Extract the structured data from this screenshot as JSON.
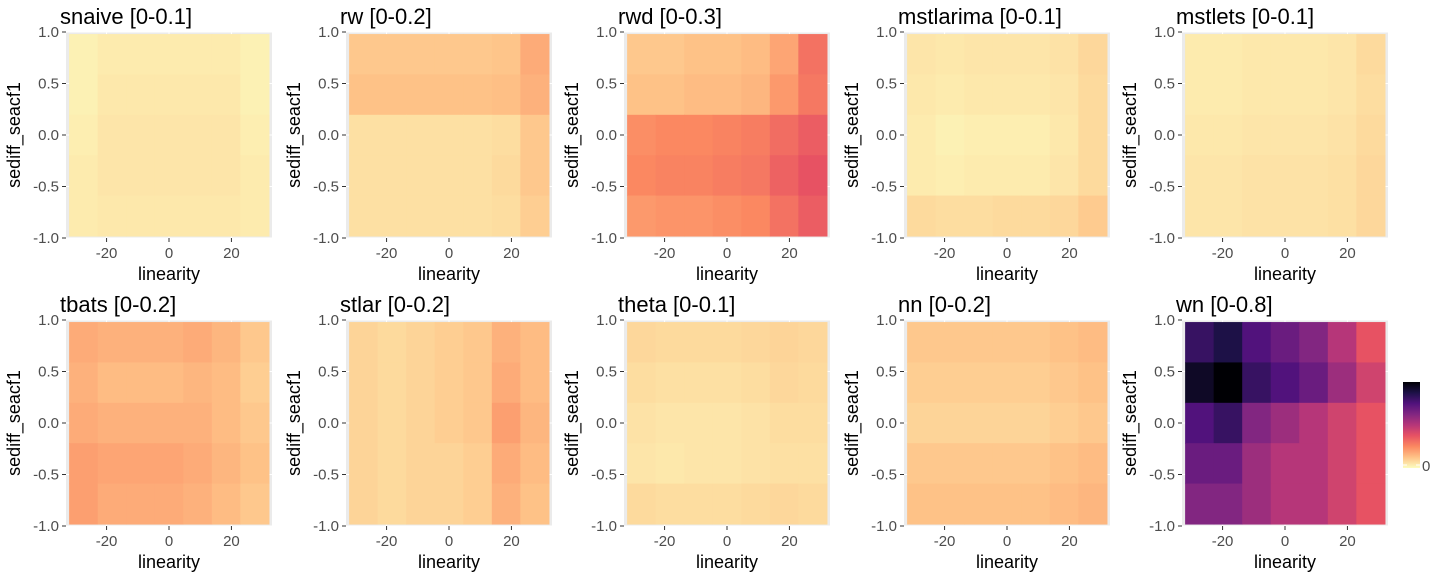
{
  "figure": {
    "colorbar": {
      "min_label": "0"
    },
    "colors": {
      "panel_bg": "#ebebeb",
      "grid": "#ffffff",
      "axis_text": "#4d4d4d",
      "title_text": "#000000",
      "magma_stops": [
        "#fcfdbf",
        "#fec287",
        "#fb8861",
        "#e75263",
        "#b63679",
        "#822681",
        "#51127c",
        "#1d1147",
        "#000004"
      ]
    }
  },
  "chart_data": [
    {
      "type": "heatmap",
      "title": "snaive [0-0.1]",
      "xlabel": "linearity",
      "ylabel": "sediff_seacf1",
      "xlim": [
        -33,
        33
      ],
      "ylim": [
        -1.0,
        1.0
      ],
      "xticks": [
        -20,
        0,
        20
      ],
      "xtick_labels": [
        "-20",
        "0",
        "20"
      ],
      "yticks": [
        -1.0,
        -0.5,
        0.0,
        0.5,
        1.0
      ],
      "ytick_labels": [
        "-1.0",
        "-0.5",
        "0.0",
        "0.5",
        "1.0"
      ],
      "x_centers": [
        -30,
        -20,
        -10,
        0,
        10,
        20,
        30
      ],
      "y_centers": [
        0.8,
        0.4,
        0.0,
        -0.4,
        -0.8
      ],
      "values": [
        [
          0.02,
          0.03,
          0.03,
          0.03,
          0.03,
          0.03,
          0.02
        ],
        [
          0.02,
          0.035,
          0.035,
          0.035,
          0.035,
          0.035,
          0.02
        ],
        [
          0.025,
          0.04,
          0.04,
          0.04,
          0.04,
          0.04,
          0.025
        ],
        [
          0.03,
          0.04,
          0.04,
          0.04,
          0.04,
          0.04,
          0.03
        ],
        [
          0.03,
          0.035,
          0.035,
          0.035,
          0.035,
          0.035,
          0.03
        ]
      ]
    },
    {
      "type": "heatmap",
      "title": "rw [0-0.2]",
      "xlabel": "linearity",
      "ylabel": "sediff_seacf1",
      "xlim": [
        -33,
        33
      ],
      "ylim": [
        -1.0,
        1.0
      ],
      "xticks": [
        -20,
        0,
        20
      ],
      "xtick_labels": [
        "-20",
        "0",
        "20"
      ],
      "yticks": [
        -1.0,
        -0.5,
        0.0,
        0.5,
        1.0
      ],
      "ytick_labels": [
        "-1.0",
        "-0.5",
        "0.0",
        "0.5",
        "1.0"
      ],
      "x_centers": [
        -30,
        -20,
        -10,
        0,
        10,
        20,
        30
      ],
      "y_centers": [
        0.8,
        0.4,
        0.0,
        -0.4,
        -0.8
      ],
      "values": [
        [
          0.09,
          0.09,
          0.09,
          0.09,
          0.09,
          0.095,
          0.14
        ],
        [
          0.1,
          0.1,
          0.1,
          0.1,
          0.1,
          0.105,
          0.13
        ],
        [
          0.05,
          0.05,
          0.05,
          0.05,
          0.05,
          0.055,
          0.09
        ],
        [
          0.05,
          0.05,
          0.05,
          0.05,
          0.05,
          0.06,
          0.09
        ],
        [
          0.05,
          0.05,
          0.05,
          0.05,
          0.05,
          0.055,
          0.08
        ]
      ]
    },
    {
      "type": "heatmap",
      "title": "rwd [0-0.3]",
      "xlabel": "linearity",
      "ylabel": "sediff_seacf1",
      "xlim": [
        -33,
        33
      ],
      "ylim": [
        -1.0,
        1.0
      ],
      "xticks": [
        -20,
        0,
        20
      ],
      "xtick_labels": [
        "-20",
        "0",
        "20"
      ],
      "yticks": [
        -1.0,
        -0.5,
        0.0,
        0.5,
        1.0
      ],
      "ytick_labels": [
        "-1.0",
        "-0.5",
        "0.0",
        "0.5",
        "1.0"
      ],
      "x_centers": [
        -30,
        -20,
        -10,
        0,
        10,
        20,
        30
      ],
      "y_centers": [
        0.8,
        0.4,
        0.0,
        -0.4,
        -0.8
      ],
      "values": [
        [
          0.09,
          0.09,
          0.1,
          0.1,
          0.11,
          0.15,
          0.24
        ],
        [
          0.1,
          0.1,
          0.11,
          0.11,
          0.12,
          0.17,
          0.23
        ],
        [
          0.19,
          0.2,
          0.2,
          0.21,
          0.22,
          0.25,
          0.28
        ],
        [
          0.2,
          0.21,
          0.21,
          0.22,
          0.23,
          0.27,
          0.3
        ],
        [
          0.17,
          0.18,
          0.18,
          0.19,
          0.2,
          0.24,
          0.28
        ]
      ]
    },
    {
      "type": "heatmap",
      "title": "mstlarima [0-0.1]",
      "xlabel": "linearity",
      "ylabel": "sediff_seacf1",
      "xlim": [
        -33,
        33
      ],
      "ylim": [
        -1.0,
        1.0
      ],
      "xticks": [
        -20,
        0,
        20
      ],
      "xtick_labels": [
        "-20",
        "0",
        "20"
      ],
      "yticks": [
        -1.0,
        -0.5,
        0.0,
        0.5,
        1.0
      ],
      "ytick_labels": [
        "-1.0",
        "-0.5",
        "0.0",
        "0.5",
        "1.0"
      ],
      "x_centers": [
        -30,
        -20,
        -10,
        0,
        10,
        20,
        30
      ],
      "y_centers": [
        0.8,
        0.4,
        0.0,
        -0.4,
        -0.8
      ],
      "values": [
        [
          0.04,
          0.035,
          0.04,
          0.04,
          0.04,
          0.045,
          0.065
        ],
        [
          0.035,
          0.03,
          0.035,
          0.035,
          0.035,
          0.04,
          0.06
        ],
        [
          0.03,
          0.02,
          0.025,
          0.025,
          0.025,
          0.035,
          0.06
        ],
        [
          0.03,
          0.025,
          0.03,
          0.03,
          0.03,
          0.04,
          0.06
        ],
        [
          0.06,
          0.055,
          0.055,
          0.06,
          0.06,
          0.065,
          0.085
        ]
      ]
    },
    {
      "type": "heatmap",
      "title": "mstlets [0-0.1]",
      "xlabel": "linearity",
      "ylabel": "sediff_seacf1",
      "xlim": [
        -33,
        33
      ],
      "ylim": [
        -1.0,
        1.0
      ],
      "xticks": [
        -20,
        0,
        20
      ],
      "xtick_labels": [
        "-20",
        "0",
        "20"
      ],
      "yticks": [
        -1.0,
        -0.5,
        0.0,
        0.5,
        1.0
      ],
      "ytick_labels": [
        "-1.0",
        "-0.5",
        "0.0",
        "0.5",
        "1.0"
      ],
      "x_centers": [
        -30,
        -20,
        -10,
        0,
        10,
        20,
        30
      ],
      "y_centers": [
        0.8,
        0.4,
        0.0,
        -0.4,
        -0.8
      ],
      "values": [
        [
          0.03,
          0.03,
          0.035,
          0.035,
          0.035,
          0.04,
          0.06
        ],
        [
          0.03,
          0.03,
          0.035,
          0.035,
          0.035,
          0.04,
          0.055
        ],
        [
          0.035,
          0.035,
          0.04,
          0.04,
          0.04,
          0.045,
          0.06
        ],
        [
          0.04,
          0.04,
          0.045,
          0.045,
          0.045,
          0.05,
          0.065
        ],
        [
          0.04,
          0.04,
          0.045,
          0.045,
          0.045,
          0.05,
          0.065
        ]
      ]
    },
    {
      "type": "heatmap",
      "title": "tbats [0-0.2]",
      "xlabel": "linearity",
      "ylabel": "sediff_seacf1",
      "xlim": [
        -33,
        33
      ],
      "ylim": [
        -1.0,
        1.0
      ],
      "xticks": [
        -20,
        0,
        20
      ],
      "xtick_labels": [
        "-20",
        "0",
        "20"
      ],
      "yticks": [
        -1.0,
        -0.5,
        0.0,
        0.5,
        1.0
      ],
      "ytick_labels": [
        "-1.0",
        "-0.5",
        "0.0",
        "0.5",
        "1.0"
      ],
      "x_centers": [
        -30,
        -20,
        -10,
        0,
        10,
        20,
        30
      ],
      "y_centers": [
        0.8,
        0.4,
        0.0,
        -0.4,
        -0.8
      ],
      "values": [
        [
          0.14,
          0.13,
          0.13,
          0.13,
          0.14,
          0.12,
          0.09
        ],
        [
          0.13,
          0.11,
          0.11,
          0.11,
          0.12,
          0.11,
          0.08
        ],
        [
          0.14,
          0.13,
          0.13,
          0.13,
          0.13,
          0.11,
          0.09
        ],
        [
          0.16,
          0.15,
          0.15,
          0.15,
          0.14,
          0.12,
          0.1
        ],
        [
          0.16,
          0.14,
          0.14,
          0.14,
          0.13,
          0.11,
          0.09
        ]
      ]
    },
    {
      "type": "heatmap",
      "title": "stlar [0-0.2]",
      "xlabel": "linearity",
      "ylabel": "sediff_seacf1",
      "xlim": [
        -33,
        33
      ],
      "ylim": [
        -1.0,
        1.0
      ],
      "xticks": [
        -20,
        0,
        20
      ],
      "xtick_labels": [
        "-20",
        "0",
        "20"
      ],
      "yticks": [
        -1.0,
        -0.5,
        0.0,
        0.5,
        1.0
      ],
      "ytick_labels": [
        "-1.0",
        "-0.5",
        "0.0",
        "0.5",
        "1.0"
      ],
      "x_centers": [
        -30,
        -20,
        -10,
        0,
        10,
        20,
        30
      ],
      "y_centers": [
        0.8,
        0.4,
        0.0,
        -0.4,
        -0.8
      ],
      "values": [
        [
          0.07,
          0.06,
          0.07,
          0.08,
          0.09,
          0.13,
          0.11
        ],
        [
          0.07,
          0.06,
          0.07,
          0.08,
          0.09,
          0.14,
          0.11
        ],
        [
          0.07,
          0.06,
          0.07,
          0.08,
          0.09,
          0.16,
          0.12
        ],
        [
          0.07,
          0.06,
          0.07,
          0.07,
          0.08,
          0.14,
          0.11
        ],
        [
          0.07,
          0.06,
          0.07,
          0.07,
          0.08,
          0.13,
          0.1
        ]
      ]
    },
    {
      "type": "heatmap",
      "title": "theta [0-0.1]",
      "xlabel": "linearity",
      "ylabel": "sediff_seacf1",
      "xlim": [
        -33,
        33
      ],
      "ylim": [
        -1.0,
        1.0
      ],
      "xticks": [
        -20,
        0,
        20
      ],
      "xtick_labels": [
        "-20",
        "0",
        "20"
      ],
      "yticks": [
        -1.0,
        -0.5,
        0.0,
        0.5,
        1.0
      ],
      "ytick_labels": [
        "-1.0",
        "-0.5",
        "0.0",
        "0.5",
        "1.0"
      ],
      "x_centers": [
        -30,
        -20,
        -10,
        0,
        10,
        20,
        30
      ],
      "y_centers": [
        0.8,
        0.4,
        0.0,
        -0.4,
        -0.8
      ],
      "values": [
        [
          0.065,
          0.06,
          0.06,
          0.06,
          0.065,
          0.07,
          0.065
        ],
        [
          0.055,
          0.05,
          0.05,
          0.05,
          0.055,
          0.065,
          0.06
        ],
        [
          0.045,
          0.04,
          0.04,
          0.04,
          0.045,
          0.055,
          0.055
        ],
        [
          0.04,
          0.035,
          0.04,
          0.04,
          0.045,
          0.05,
          0.05
        ],
        [
          0.06,
          0.055,
          0.055,
          0.055,
          0.06,
          0.065,
          0.06
        ]
      ]
    },
    {
      "type": "heatmap",
      "title": "nn [0-0.2]",
      "xlabel": "linearity",
      "ylabel": "sediff_seacf1",
      "xlim": [
        -33,
        33
      ],
      "ylim": [
        -1.0,
        1.0
      ],
      "xticks": [
        -20,
        0,
        20
      ],
      "xtick_labels": [
        "-20",
        "0",
        "20"
      ],
      "yticks": [
        -1.0,
        -0.5,
        0.0,
        0.5,
        1.0
      ],
      "ytick_labels": [
        "-1.0",
        "-0.5",
        "0.0",
        "0.5",
        "1.0"
      ],
      "x_centers": [
        -30,
        -20,
        -10,
        0,
        10,
        20,
        30
      ],
      "y_centers": [
        0.8,
        0.4,
        0.0,
        -0.4,
        -0.8
      ],
      "values": [
        [
          0.09,
          0.09,
          0.09,
          0.09,
          0.09,
          0.1,
          0.11
        ],
        [
          0.08,
          0.08,
          0.08,
          0.08,
          0.08,
          0.09,
          0.1
        ],
        [
          0.07,
          0.07,
          0.07,
          0.07,
          0.07,
          0.08,
          0.09
        ],
        [
          0.09,
          0.09,
          0.09,
          0.09,
          0.09,
          0.1,
          0.11
        ],
        [
          0.1,
          0.1,
          0.1,
          0.1,
          0.1,
          0.11,
          0.12
        ]
      ]
    },
    {
      "type": "heatmap",
      "title": "wn [0-0.8]",
      "xlabel": "linearity",
      "ylabel": "sediff_seacf1",
      "xlim": [
        -33,
        33
      ],
      "ylim": [
        -1.0,
        1.0
      ],
      "xticks": [
        -20,
        0,
        20
      ],
      "xtick_labels": [
        "-20",
        "0",
        "20"
      ],
      "yticks": [
        -1.0,
        -0.5,
        0.0,
        0.5,
        1.0
      ],
      "ytick_labels": [
        "-1.0",
        "-0.5",
        "0.0",
        "0.5",
        "1.0"
      ],
      "x_centers": [
        -30,
        -20,
        -10,
        0,
        10,
        20,
        30
      ],
      "y_centers": [
        0.8,
        0.4,
        0.0,
        -0.4,
        -0.8
      ],
      "values": [
        [
          0.65,
          0.7,
          0.6,
          0.55,
          0.5,
          0.4,
          0.3
        ],
        [
          0.75,
          0.8,
          0.65,
          0.6,
          0.55,
          0.45,
          0.35
        ],
        [
          0.6,
          0.65,
          0.5,
          0.45,
          0.4,
          0.35,
          0.3
        ],
        [
          0.55,
          0.55,
          0.45,
          0.4,
          0.4,
          0.35,
          0.3
        ],
        [
          0.5,
          0.5,
          0.45,
          0.4,
          0.4,
          0.35,
          0.3
        ]
      ]
    }
  ]
}
